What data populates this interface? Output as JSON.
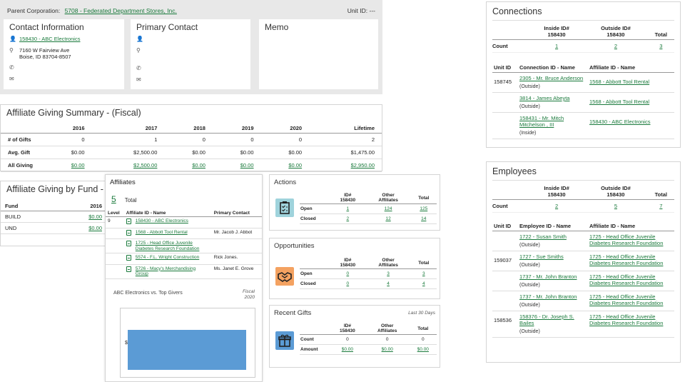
{
  "header": {
    "parent_label": "Parent Corporation:",
    "parent_link": "5708 - Federated Department Stores, Inc.",
    "unit_id": "Unit ID: ---"
  },
  "contact": {
    "title": "Contact Information",
    "name": "158430 - ABC Electronics",
    "address1": "7160 W Fairview Ave",
    "address2": "Boise, ID 83704-8507"
  },
  "primary_contact": {
    "title": "Primary Contact"
  },
  "memo": {
    "title": "Memo"
  },
  "ags": {
    "title": "Affiliate Giving Summary - (Fiscal)",
    "years": [
      "2016",
      "2017",
      "2018",
      "2019",
      "2020",
      "Lifetime"
    ],
    "rows": [
      {
        "label": "# of Gifts",
        "values": [
          "0",
          "1",
          "0",
          "0",
          "0",
          "2"
        ],
        "link": false
      },
      {
        "label": "Avg. Gift",
        "values": [
          "$0.00",
          "$2,500.00",
          "$0.00",
          "$0.00",
          "$0.00",
          "$1,475.00"
        ],
        "link": false
      },
      {
        "label": "All Giving",
        "values": [
          "$0.00",
          "$2,500.00",
          "$0.00",
          "$0.00",
          "$0.00",
          "$2,950.00"
        ],
        "link": true
      }
    ]
  },
  "agf": {
    "title": "Affiliate Giving by Fund - (Fiscal)",
    "col_fund": "Fund",
    "col_year": "2016",
    "rows": [
      {
        "fund": "BUILD",
        "value": "$0.00"
      },
      {
        "fund": "UND",
        "value": "$0.00"
      }
    ]
  },
  "affiliates": {
    "title": "Affiliates",
    "count": "5",
    "count_label": "Total",
    "col_level": "Level",
    "col_id": "Affiliate ID - Name",
    "col_contact": "Primary Contact",
    "level": "9",
    "rows": [
      {
        "name": "158430 - ABC Electronics",
        "contact": ""
      },
      {
        "name": "1568 - Abbott Tool Rental",
        "contact": "Mr. Jacob J. Abbot"
      },
      {
        "name": "1725 - Head Office Juvenile Diabetes Research Foundation",
        "contact": ""
      },
      {
        "name": "5574 - F.L. Wright Construction",
        "contact": "Rick Jones."
      },
      {
        "name": "5726 - Macy's Merchandising Group",
        "contact": "Ms. Janet E. Grove"
      }
    ],
    "chart_title": "ABC Electronics vs. Top Givers",
    "chart_period1": "Fiscal",
    "chart_period2": "2020",
    "chart_ylabel": "$"
  },
  "actions": {
    "title": "Actions",
    "col1": "ID#",
    "col1b": "158430",
    "col2": "Other",
    "col2b": "Affiliates",
    "col3": "Total",
    "rows": [
      {
        "label": "Open",
        "a": "1",
        "b": "124",
        "c": "125"
      },
      {
        "label": "Closed",
        "a": "2",
        "b": "12",
        "c": "14"
      }
    ],
    "color": "#9fd3dc"
  },
  "opportunities": {
    "title": "Opportunities",
    "col1": "ID#",
    "col1b": "158430",
    "col2": "Other",
    "col2b": "Affiliates",
    "col3": "Total",
    "rows": [
      {
        "label": "Open",
        "a": "0",
        "b": "3",
        "c": "3"
      },
      {
        "label": "Closed",
        "a": "0",
        "b": "4",
        "c": "4"
      }
    ],
    "color": "#f4a261"
  },
  "recent_gifts": {
    "title": "Recent Gifts",
    "period": "Last 30 Days",
    "col1": "ID#",
    "col1b": "158430",
    "col2": "Other",
    "col2b": "Affiliates",
    "col3": "Total",
    "count_row": {
      "label": "Count",
      "a": "0",
      "b": "0",
      "c": "0"
    },
    "amount_row": {
      "label": "Amount",
      "a": "$0.00",
      "b": "$0.00",
      "c": "$0.00"
    },
    "color": "#5b9bd5"
  },
  "connections": {
    "title": "Connections",
    "col_inside": "Inside ID#",
    "col_inside_b": "158430",
    "col_outside": "Outside ID#",
    "col_outside_b": "158430",
    "col_total": "Total",
    "count_label": "Count",
    "count_inside": "1",
    "count_outside": "2",
    "count_total": "3",
    "col_unit": "Unit ID",
    "col_conn": "Connection ID - Name",
    "col_aff": "Affiliate ID - Name",
    "rows": [
      {
        "unit": "158745",
        "name": "2305 - Mr. Bruce Anderson",
        "type": "(Outside)",
        "aff": "1568 - Abbott Tool Rental"
      },
      {
        "unit": "",
        "name": "3814 - James Abeyta",
        "type": "(Outside)",
        "aff": "1568 - Abbott Tool Rental"
      },
      {
        "unit": "",
        "name": "158431 - Mr. Mitch Mitchelson , III",
        "type": "(Inside)",
        "aff": "158430 - ABC Electronics"
      }
    ]
  },
  "employees": {
    "title": "Employees",
    "col_inside": "Inside ID#",
    "col_inside_b": "158430",
    "col_outside": "Outside ID#",
    "col_outside_b": "158430",
    "col_total": "Total",
    "count_label": "Count",
    "count_inside": "2",
    "count_outside": "5",
    "count_total": "7",
    "col_unit": "Unit ID",
    "col_emp": "Employee ID - Name",
    "col_aff": "Affiliate ID - Name",
    "rows": [
      {
        "unit": "",
        "name": "1722 - Susan Smith",
        "type": "(Outside)",
        "aff": "1725 - Head Office Juvenile Diabetes Research Foundation"
      },
      {
        "unit": "159037",
        "name": "1727 - Sue Smiths",
        "type": "(Outside)",
        "aff": "1725 - Head Office Juvenile Diabetes Research Foundation"
      },
      {
        "unit": "",
        "name": "1737 - Mr. John Branton",
        "type": "(Outside)",
        "aff": "1725 - Head Office Juvenile Diabetes Research Foundation"
      },
      {
        "unit": "",
        "name": "1737 - Mr. John Branton",
        "type": "(Outside)",
        "aff": "1725 - Head Office Juvenile Diabetes Research Foundation"
      },
      {
        "unit": "158536",
        "name": "158376 - Dr. Joseph S. Bailes",
        "type": "(Outside)",
        "aff": "1725 - Head Office Juvenile Diabetes Research Foundation"
      }
    ]
  },
  "icons": {
    "user": "user-icon",
    "location": "map-pin-icon",
    "phone": "phone-icon",
    "email": "envelope-icon",
    "actions": "clipboard-check-icon",
    "opportunities": "handshake-icon",
    "gifts": "gift-icon"
  }
}
